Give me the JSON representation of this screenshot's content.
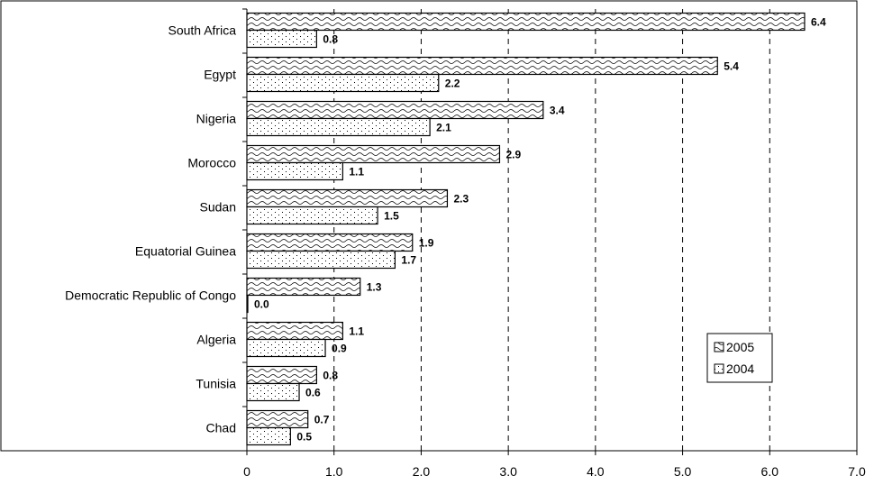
{
  "chart_data": {
    "type": "bar",
    "orientation": "horizontal",
    "categories": [
      "South Africa",
      "Egypt",
      "Nigeria",
      "Morocco",
      "Sudan",
      "Equatorial Guinea",
      "Democratic Republic of Congo",
      "Algeria",
      "Tunisia",
      "Chad"
    ],
    "series": [
      {
        "name": "2005",
        "values": [
          6.4,
          5.4,
          3.4,
          2.9,
          2.3,
          1.9,
          1.3,
          1.1,
          0.8,
          0.7
        ],
        "data_labels": [
          "6.4",
          "5.4",
          "3.4",
          "2.9",
          "2.3",
          "1.9",
          "1.3",
          "1.1",
          "0.8",
          "0.7"
        ],
        "pattern": "wave"
      },
      {
        "name": "2004",
        "values": [
          0.8,
          2.2,
          2.1,
          1.1,
          1.5,
          1.7,
          0.0,
          0.9,
          0.6,
          0.5
        ],
        "data_labels": [
          "0.8",
          "2.2",
          "2.1",
          "1.1",
          "1.5",
          "1.7",
          "0.0",
          "0.9",
          "0.6",
          "0.5"
        ],
        "pattern": "dots"
      }
    ],
    "xlim": [
      0,
      7
    ],
    "xticks": [
      "0",
      "1.0",
      "2.0",
      "3.0",
      "4.0",
      "5.0",
      "6.0",
      "7.0"
    ],
    "grid": "vertical dashed",
    "legend": {
      "placement": "bottom-right",
      "entries": [
        "2005",
        "2004"
      ]
    },
    "title": "",
    "xlabel": "",
    "ylabel": ""
  }
}
